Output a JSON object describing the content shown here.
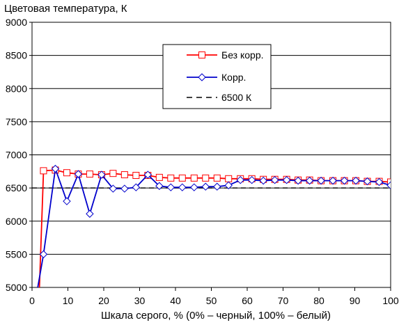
{
  "chart_data": {
    "type": "line",
    "ylabel": "Цветовая температура, К",
    "xlabel": "Шкала серого, % (0% – черный, 100% – белый)",
    "xlim": [
      0,
      100
    ],
    "ylim": [
      5000,
      9000
    ],
    "x_ticks": [
      0,
      10,
      20,
      30,
      40,
      50,
      60,
      70,
      80,
      90,
      100
    ],
    "y_ticks": [
      5000,
      5500,
      6000,
      6500,
      7000,
      7500,
      8000,
      8500,
      9000
    ],
    "grid": "horizontal",
    "legend_position": "top-right",
    "series": [
      {
        "name": "Без корр.",
        "color": "#ff0000",
        "marker": "square",
        "x": [
          2,
          3.2,
          6.5,
          9.7,
          12.9,
          16.1,
          19.4,
          22.6,
          25.8,
          29.0,
          32.3,
          35.5,
          38.7,
          41.9,
          45.2,
          48.4,
          51.6,
          54.8,
          58.1,
          61.3,
          64.5,
          67.7,
          71.0,
          74.2,
          77.4,
          80.6,
          83.9,
          87.1,
          90.3,
          93.5,
          96.8,
          100
        ],
        "y": [
          4900,
          6760,
          6770,
          6730,
          6710,
          6710,
          6700,
          6720,
          6700,
          6690,
          6690,
          6660,
          6650,
          6650,
          6650,
          6650,
          6650,
          6640,
          6640,
          6640,
          6630,
          6630,
          6630,
          6620,
          6620,
          6610,
          6610,
          6610,
          6610,
          6600,
          6600,
          6590
        ]
      },
      {
        "name": "Корр.",
        "color": "#0000cc",
        "marker": "diamond",
        "x": [
          1,
          1.6,
          3.2,
          6.5,
          9.7,
          12.9,
          16.1,
          19.4,
          22.6,
          25.8,
          29.0,
          32.3,
          35.5,
          38.7,
          41.9,
          45.2,
          48.4,
          51.6,
          54.8,
          58.1,
          61.3,
          64.5,
          67.7,
          71.0,
          74.2,
          77.4,
          80.6,
          83.9,
          87.1,
          90.3,
          93.5,
          96.8,
          100
        ],
        "y": [
          4900,
          5000,
          5500,
          6790,
          6300,
          6710,
          6110,
          6700,
          6490,
          6490,
          6510,
          6700,
          6530,
          6510,
          6510,
          6510,
          6520,
          6520,
          6540,
          6620,
          6620,
          6610,
          6620,
          6620,
          6610,
          6610,
          6610,
          6610,
          6610,
          6610,
          6600,
          6590,
          6540
        ]
      },
      {
        "name": "6500 К",
        "color": "#000000",
        "style": "dashed",
        "x": [
          0,
          100
        ],
        "y": [
          6500,
          6500
        ]
      }
    ]
  }
}
